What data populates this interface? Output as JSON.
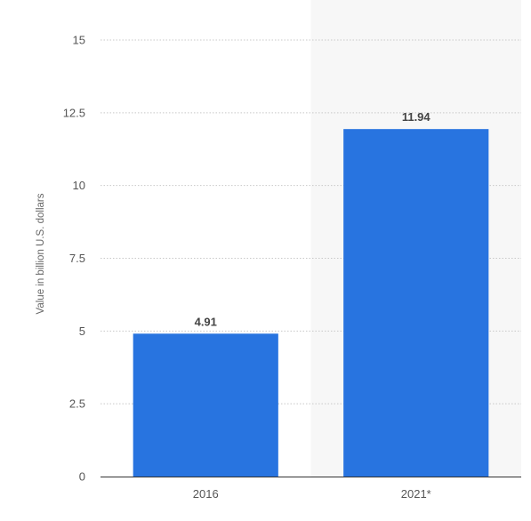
{
  "chart_data": {
    "type": "bar",
    "categories": [
      "2016",
      "2021*"
    ],
    "values": [
      4.91,
      11.94
    ],
    "value_labels": [
      "4.91",
      "11.94"
    ],
    "ylabel": "Value in billion U.S. dollars",
    "ylim": [
      0,
      15
    ],
    "yticks": [
      "0",
      "2.5",
      "5",
      "7.5",
      "10",
      "12.5",
      "15"
    ],
    "bar_color": "#2874e0",
    "highlight_band_color": "#f7f7f7",
    "highlighted_category": "2021*",
    "grid": true
  }
}
